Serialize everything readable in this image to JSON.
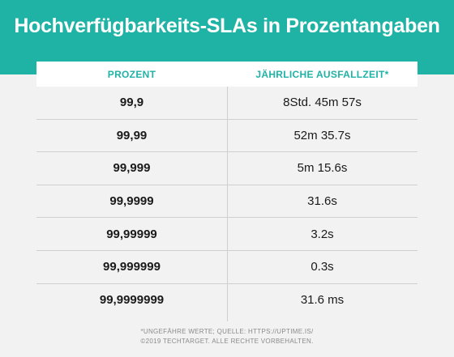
{
  "title": "Hochverfügbarkeits-SLAs in Prozentangaben",
  "table": {
    "headers": [
      "PROZENT",
      "JÄHRLICHE AUSFALLZEIT*"
    ],
    "rows": [
      {
        "percent": "99,9",
        "downtime": "8Std. 45m 57s"
      },
      {
        "percent": "99,99",
        "downtime": "52m 35.7s"
      },
      {
        "percent": "99,999",
        "downtime": "5m 15.6s"
      },
      {
        "percent": "99,9999",
        "downtime": "31.6s"
      },
      {
        "percent": "99,99999",
        "downtime": "3.2s"
      },
      {
        "percent": "99,999999",
        "downtime": "0.3s"
      },
      {
        "percent": "99,9999999",
        "downtime": "31.6 ms"
      }
    ]
  },
  "footnote": {
    "line1": "*UNGEFÄHRE WERTE; QUELLE: HTTPS://UPTIME.IS/",
    "line2": "©2019 TECHTARGET. ALLE RECHTE VORBEHALTEN."
  },
  "colors": {
    "accent": "#1fb3a5",
    "background": "#f2f2f2"
  }
}
